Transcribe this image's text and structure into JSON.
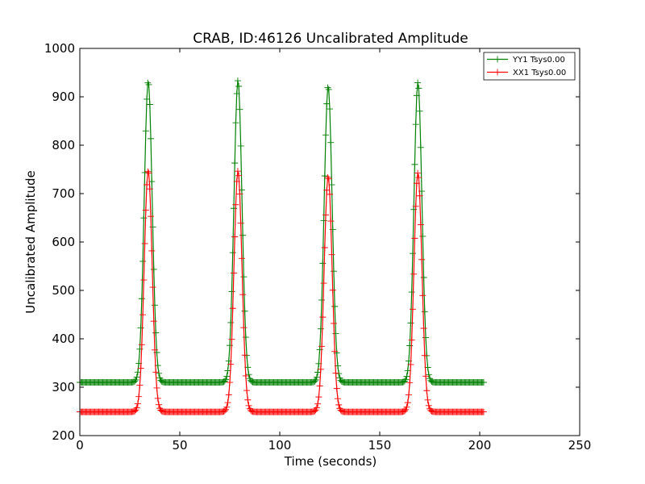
{
  "chart_data": {
    "type": "line",
    "title": "CRAB, ID:46126 Uncalibrated Amplitude",
    "xlabel": "Time (seconds)",
    "ylabel": "Uncalibrated Amplitude",
    "xlim": [
      0,
      250
    ],
    "ylim": [
      200,
      1000
    ],
    "xticks": [
      0,
      50,
      100,
      150,
      200,
      250
    ],
    "yticks": [
      200,
      300,
      400,
      500,
      600,
      700,
      800,
      900,
      1000
    ],
    "xtick_labels": [
      "0",
      "50",
      "100",
      "150",
      "200",
      "250"
    ],
    "ytick_labels": [
      "200",
      "300",
      "400",
      "500",
      "600",
      "700",
      "800",
      "900",
      "1000"
    ],
    "grid": false,
    "legend_position": "top-right",
    "marker": "+",
    "series": [
      {
        "name": "YY1 Tsys0.00",
        "color": "#008000",
        "baseline": 310,
        "sample_interval": 0.5,
        "t_range": [
          0,
          202
        ],
        "peaks": [
          {
            "center": 34.2,
            "peak": 932,
            "sigma": 2.0
          },
          {
            "center": 79.1,
            "peak": 934,
            "sigma": 2.0
          },
          {
            "center": 124.2,
            "peak": 922,
            "sigma": 2.0
          },
          {
            "center": 169.1,
            "peak": 930,
            "sigma": 2.0
          }
        ]
      },
      {
        "name": "XX1 Tsys0.00",
        "color": "#ff0000",
        "baseline": 249,
        "sample_interval": 0.5,
        "t_range": [
          0,
          202
        ],
        "peaks": [
          {
            "center": 34.2,
            "peak": 748,
            "sigma": 2.0
          },
          {
            "center": 79.1,
            "peak": 747,
            "sigma": 2.0
          },
          {
            "center": 124.2,
            "peak": 736,
            "sigma": 2.0
          },
          {
            "center": 169.1,
            "peak": 743,
            "sigma": 2.0
          }
        ]
      }
    ]
  }
}
